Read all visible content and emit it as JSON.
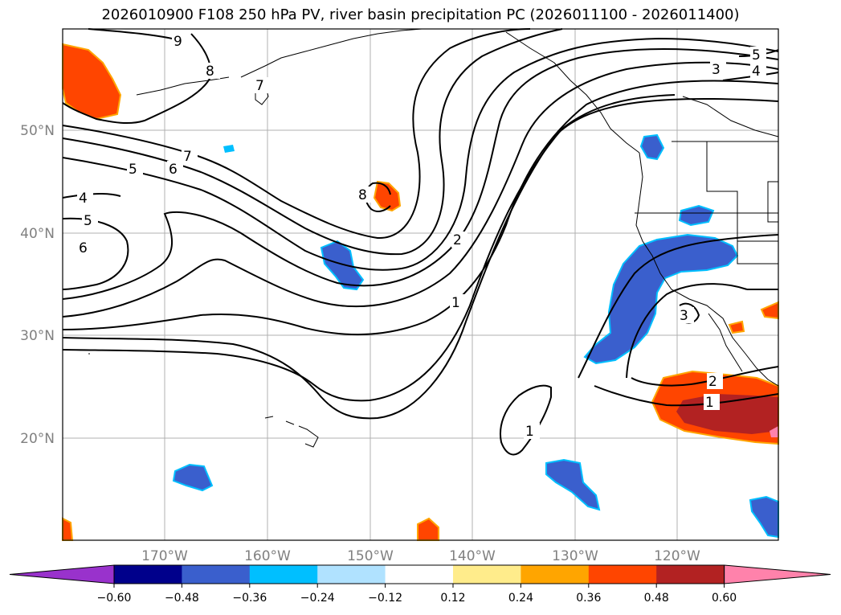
{
  "title": "2026010900 F108 250 hPa PV, river basin precipitation PC (2026011100 - 2026011400)",
  "lon_labels": [
    "170°W",
    "160°W",
    "150°W",
    "140°W",
    "130°W",
    "120°W"
  ],
  "lat_labels": [
    "50°N",
    "40°N",
    "30°N",
    "20°N"
  ],
  "colorbar": {
    "ticks": [
      "−0.60",
      "−0.48",
      "−0.36",
      "−0.24",
      "−0.12",
      "0.12",
      "0.24",
      "0.36",
      "0.48",
      "0.60"
    ],
    "colors": [
      "#9932cc",
      "#00008b",
      "#3a5fcd",
      "#00bfff",
      "#b0e2ff",
      "#ffffff",
      "#ffec8b",
      "#ffa500",
      "#ff4500",
      "#b22222",
      "#ff82ab"
    ]
  },
  "contour_labels": [
    "9",
    "8",
    "7",
    "7",
    "6",
    "5",
    "4",
    "5",
    "6",
    "8",
    "2",
    "1",
    "5",
    "4",
    "3",
    "3",
    "2",
    "1",
    "1"
  ],
  "colors": {
    "positive_strong": "#ff4500",
    "positive_core": "#b22222",
    "negative_strong": "#3a5fcd",
    "negative_light": "#00bfff",
    "grid": "#b0b0b0"
  }
}
